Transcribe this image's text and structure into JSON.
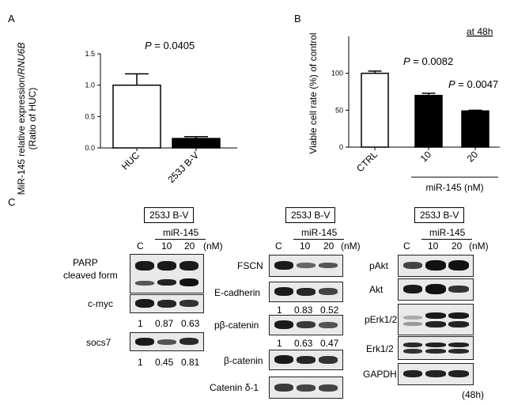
{
  "panels": {
    "a": "A",
    "b": "B",
    "c": "C"
  },
  "chart_data": [
    {
      "type": "bar",
      "panel": "A",
      "categories": [
        "HUC",
        "253J B-V"
      ],
      "values": [
        1.0,
        0.15
      ],
      "errors": [
        0.18,
        0.03
      ],
      "colors": [
        "#ffffff",
        "#000000"
      ],
      "ylabel_main": "MiR-145 relative expression/",
      "ylabel_italic": "RNU6B",
      "ylabel_sub": "(Ratio  of  HUC)",
      "ylim": [
        0,
        1.5
      ],
      "yticks": [
        "0.0",
        "0.5",
        "1.0",
        "1.5"
      ],
      "annotation_p": "P",
      "annotation_value": " = 0.0405"
    },
    {
      "type": "bar",
      "panel": "B",
      "categories": [
        "CTRL",
        "10",
        "20"
      ],
      "values": [
        100,
        70,
        49
      ],
      "errors": [
        3,
        3,
        1
      ],
      "colors": [
        "#ffffff",
        "#000000",
        "#000000"
      ],
      "ylabel": "Viable cell rate (%) of control",
      "ylim": [
        0,
        150
      ],
      "yticks": [
        "0",
        "50",
        "100"
      ],
      "time_label": "at 48h",
      "group_label": "miR-145 (nM)",
      "annotations": [
        {
          "p": "P",
          "value": " = 0.0082"
        },
        {
          "p": "P",
          "value": " = 0.0047"
        }
      ]
    }
  ],
  "western": {
    "cell_line": "253J B-V",
    "mir": "miR-145",
    "nm": "(nM)",
    "lanes": [
      "C",
      "10",
      "20"
    ],
    "time": "(48h)",
    "left": {
      "parp": "PARP",
      "parp_sub": "cleaved form",
      "cmyc": "c-myc",
      "cmyc_values": [
        "1",
        "0.87",
        "0.63"
      ],
      "socs7": "socs7",
      "socs7_values": [
        "1",
        "0.45",
        "0.81"
      ]
    },
    "middle": {
      "fscn": "FSCN",
      "ecad": "E-cadherin",
      "ecad_values": [
        "1",
        "0.83",
        "0.52"
      ],
      "pbcat": "pβ-catenin",
      "pbcat_values": [
        "1",
        "0.63",
        "0.47"
      ],
      "bcat": "β-catenin",
      "catd1": "Catenin δ-1"
    },
    "right": {
      "pakt": "pAkt",
      "akt": "Akt",
      "perk": "pErk1/2",
      "erk": "Erk1/2",
      "gapdh": "GAPDH"
    }
  }
}
